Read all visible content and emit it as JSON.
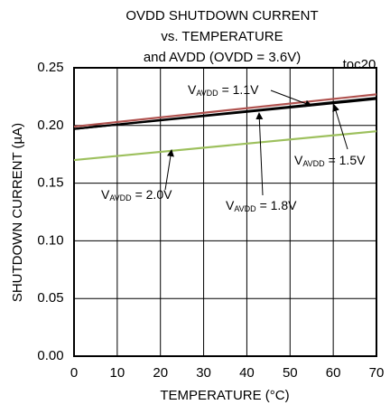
{
  "chart_data": {
    "type": "line",
    "title": [
      "OVDD SHUTDOWN CURRENT",
      "vs. TEMPERATURE",
      "and AVDD (OVDD = 3.6V)"
    ],
    "figure_id": "toc20",
    "x_label": "TEMPERATURE (°C)",
    "y_label": "SHUTDOWN CURRENT (µA)",
    "x": [
      0,
      70
    ],
    "xlim": [
      0,
      70
    ],
    "xticks": [
      0,
      10,
      20,
      30,
      40,
      50,
      60,
      70
    ],
    "ylim": [
      0,
      0.25
    ],
    "yticks": [
      {
        "value": 0,
        "label": "0.00"
      },
      0.05,
      {
        "value": 0.1,
        "label": "0.10"
      },
      0.15,
      {
        "value": 0.2,
        "label": "0.20"
      },
      0.25
    ],
    "grid": true,
    "series": [
      {
        "name": {
          "main": "V",
          "sub": "AVDD",
          "tail": " = 1.1V"
        },
        "color": "#b0524f",
        "values": [
          0.199,
          0.227
        ]
      },
      {
        "name": {
          "main": "V",
          "sub": "AVDD",
          "tail": " = 1.5V"
        },
        "color": "#000000",
        "values": [
          0.197,
          0.223
        ]
      },
      {
        "name": {
          "main": "V",
          "sub": "AVDD",
          "tail": " = 1.8V"
        },
        "color": "#000000",
        "values": [
          0.197,
          0.224
        ]
      },
      {
        "name": {
          "main": "V",
          "sub": "AVDD",
          "tail": " = 2.0V"
        },
        "color": "#9dc05d",
        "values": [
          0.17,
          0.195
        ]
      }
    ]
  }
}
